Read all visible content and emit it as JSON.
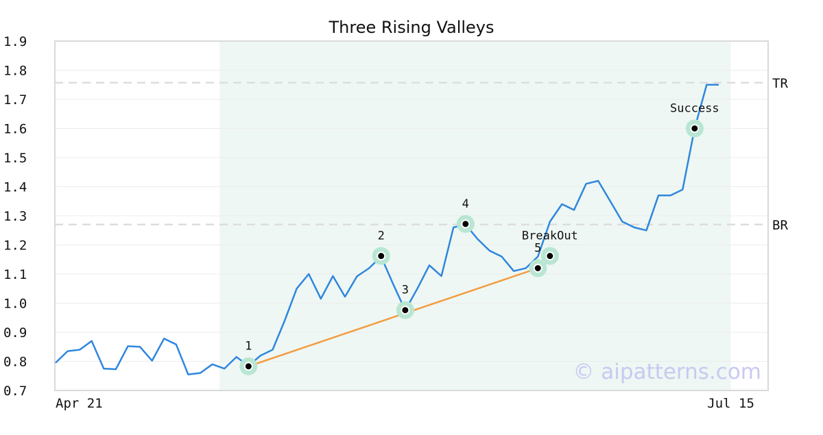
{
  "chart_data": {
    "type": "line",
    "title": "Three Rising Valleys",
    "xlabel": "",
    "ylabel": "",
    "ylim": [
      0.7,
      1.9
    ],
    "yticks": [
      "0.7",
      "0.8",
      "0.9",
      "1.0",
      "1.1",
      "1.2",
      "1.3",
      "1.4",
      "1.5",
      "1.6",
      "1.7",
      "1.8",
      "1.9"
    ],
    "xticks": [
      {
        "label": "Apr 21",
        "index": 0
      },
      {
        "label": "Jul 15",
        "index": 56
      }
    ],
    "grid": "horizontal",
    "highlight_range": [
      14,
      56
    ],
    "series": [
      {
        "color": "#2e86de",
        "values": [
          0.795,
          0.835,
          0.84,
          0.87,
          0.775,
          0.773,
          0.852,
          0.85,
          0.802,
          0.878,
          0.858,
          0.755,
          0.76,
          0.79,
          0.775,
          0.815,
          0.785,
          0.82,
          0.84,
          0.94,
          1.05,
          1.1,
          1.015,
          1.093,
          1.022,
          1.092,
          1.12,
          1.16,
          1.065,
          0.975,
          1.05,
          1.13,
          1.093,
          1.26,
          1.27,
          1.22,
          1.18,
          1.16,
          1.11,
          1.12,
          1.16,
          1.28,
          1.34,
          1.32,
          1.41,
          1.42,
          1.35,
          1.28,
          1.26,
          1.25,
          1.37,
          1.37,
          1.39,
          1.6,
          1.75,
          1.75
        ]
      }
    ],
    "trendline": {
      "color": "#f39c40",
      "points": [
        {
          "x": 16,
          "y": 0.783
        },
        {
          "x": 40,
          "y": 1.12
        }
      ]
    },
    "levels": [
      {
        "label": "TR",
        "y": 1.757
      },
      {
        "label": "BR",
        "y": 1.27
      }
    ],
    "annotations": [
      {
        "label": "1",
        "x": 16,
        "y": 0.783
      },
      {
        "label": "2",
        "x": 27,
        "y": 1.162
      },
      {
        "label": "3",
        "x": 29,
        "y": 0.976
      },
      {
        "label": "4",
        "x": 34,
        "y": 1.272
      },
      {
        "label": "5",
        "x": 40,
        "y": 1.12
      },
      {
        "label": "BreakOut",
        "x": 41,
        "y": 1.162
      },
      {
        "label": "Success",
        "x": 53,
        "y": 1.6
      }
    ],
    "colors": {
      "line": "#2e86de",
      "trendline": "#f39c40",
      "marker_halo": "#b8e6d2",
      "highlight": "#eef7f3",
      "level": "#dddddd",
      "grid": "#ececec"
    }
  },
  "watermark": "© aipatterns.com"
}
